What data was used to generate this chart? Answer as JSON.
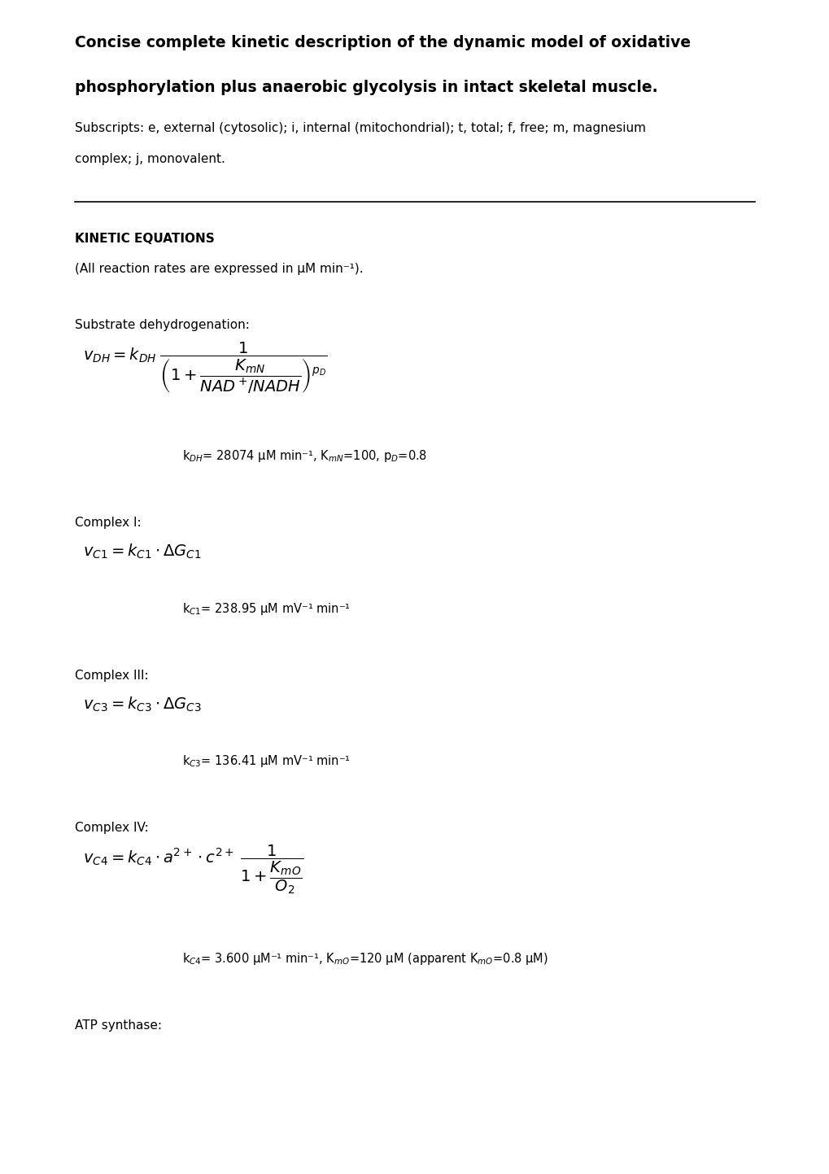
{
  "title_line1": "Concise complete kinetic description of the dynamic model of oxidative",
  "title_line2": "phosphorylation plus anaerobic glycolysis in intact skeletal muscle.",
  "subscripts_line1": "Subscripts: e, external (cytosolic); i, internal (mitochondrial); t, total; f, free; m, magnesium",
  "subscripts_line2": "complex; j, monovalent.",
  "section_header": "KINETIC EQUATIONS",
  "reaction_rates_note": "(All reaction rates are expressed in μM min⁻¹).",
  "substrate_label": "Substrate dehydrogenation:",
  "substrate_params": "k$_{DH}$= 28074 μM min⁻¹, K$_{mN}$=100, p$_D$=0.8",
  "complexI_label": "Complex I:",
  "complexI_params": "k$_{C1}$= 238.95 μM mV⁻¹ min⁻¹",
  "complexIII_label": "Complex III:",
  "complexIII_params": "k$_{C3}$= 136.41 μM mV⁻¹ min⁻¹",
  "complexIV_label": "Complex IV:",
  "complexIV_params": "k$_{C4}$= 3.600 μM⁻¹ min⁻¹, K$_{mO}$=120 μM (apparent K$_{mO}$=0.8 μM)",
  "atp_label": "ATP synthase:",
  "bg_color": "#ffffff",
  "text_color": "#000000",
  "line_color": "#000000"
}
